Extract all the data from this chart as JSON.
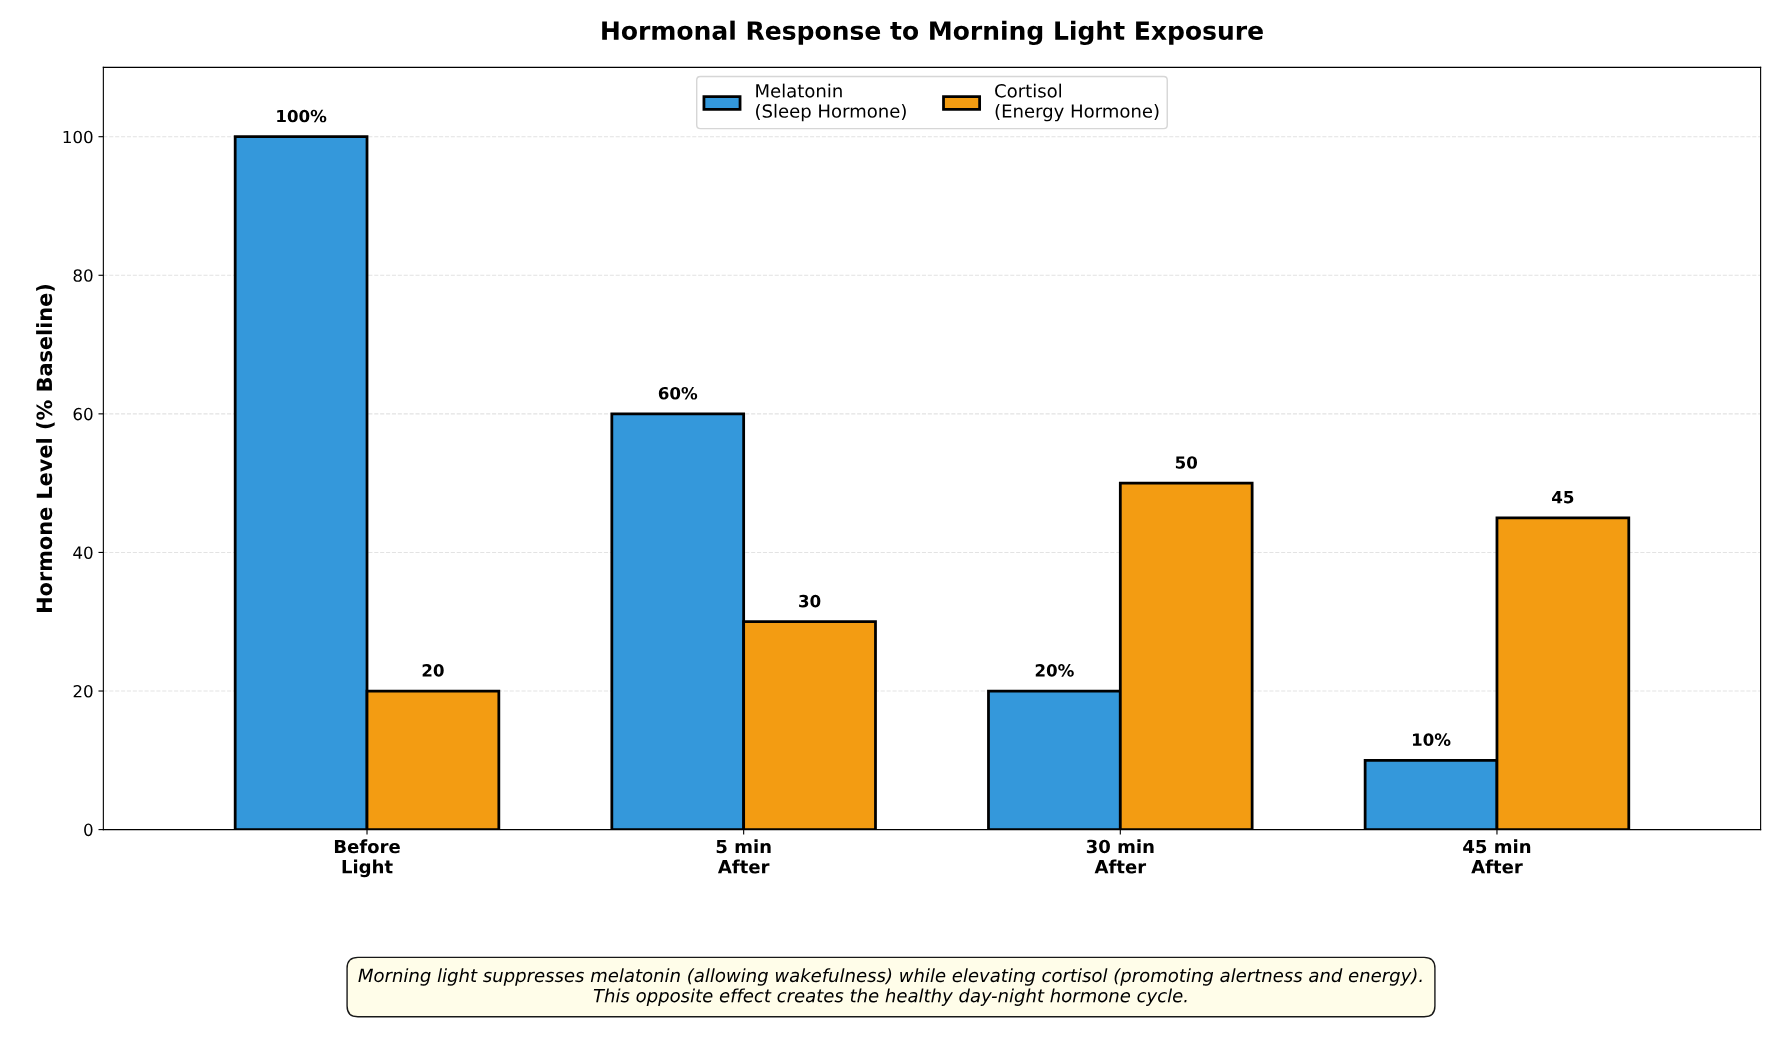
{
  "chart_data": {
    "type": "bar",
    "title": "Hormonal Response to Morning Light Exposure",
    "ylabel": "Hormone Level (% Baseline)",
    "categories": [
      "Before\nLight",
      "5 min\nAfter",
      "30 min\nAfter",
      "45 min\nAfter"
    ],
    "series": [
      {
        "name": "Melatonin\n(Sleep Hormone)",
        "color": "#3498db",
        "values": [
          100,
          60,
          20,
          10
        ],
        "value_labels": [
          "100%",
          "60%",
          "20%",
          "10%"
        ]
      },
      {
        "name": "Cortisol\n(Energy Hormone)",
        "color": "#f39c12",
        "values": [
          20,
          30,
          50,
          45
        ],
        "value_labels": [
          "20",
          "30",
          "50",
          "45"
        ]
      }
    ],
    "ylim": [
      0,
      110
    ],
    "yticks": [
      0,
      20,
      40,
      60,
      80,
      100
    ],
    "grid": "y",
    "legend": "top",
    "annotations": [
      "Morning light suppresses melatonin (allowing wakefulness) while elevating cortisol (promoting alertness and energy).\nThis opposite effect creates the healthy day-night hormone cycle."
    ]
  }
}
